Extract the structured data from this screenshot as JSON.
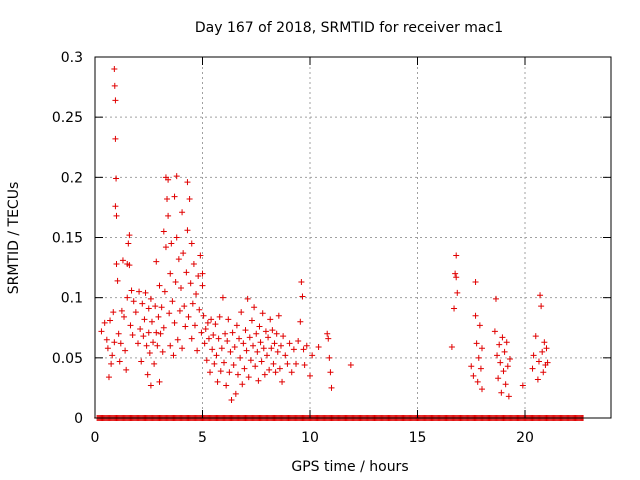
{
  "chart_data": {
    "type": "scatter",
    "title": "Day 167 of 2018, SRMTID for receiver mac1",
    "xlabel": "GPS time / hours",
    "ylabel": "SRMTID / TECUs",
    "xlim": [
      0,
      24.0
    ],
    "ylim": [
      0,
      0.3
    ],
    "grid": true,
    "legend": "none",
    "marker": "+",
    "series_color": "#e00000",
    "x_ticks": [
      {
        "value": 0,
        "label": "0"
      },
      {
        "value": 5,
        "label": "5"
      },
      {
        "value": 10,
        "label": "10"
      },
      {
        "value": 15,
        "label": "15"
      },
      {
        "value": 20,
        "label": "20"
      }
    ],
    "y_ticks": [
      {
        "value": 0,
        "label": "0"
      },
      {
        "value": 0.05,
        "label": "0.05"
      },
      {
        "value": 0.1,
        "label": "0.1"
      },
      {
        "value": 0.15,
        "label": "0.15"
      },
      {
        "value": 0.2,
        "label": "0.2"
      },
      {
        "value": 0.25,
        "label": "0.25"
      },
      {
        "value": 0.3,
        "label": "0.3"
      }
    ],
    "series": [
      {
        "name": "SRMTID",
        "points": [
          [
            0.3,
            0.072
          ],
          [
            0.45,
            0.079
          ],
          [
            0.55,
            0.065
          ],
          [
            0.6,
            0.058
          ],
          [
            0.65,
            0.034
          ],
          [
            0.7,
            0.081
          ],
          [
            0.75,
            0.045
          ],
          [
            0.8,
            0.052
          ],
          [
            0.85,
            0.088
          ],
          [
            0.9,
            0.063
          ],
          [
            0.9,
            0.29
          ],
          [
            0.92,
            0.276
          ],
          [
            0.95,
            0.264
          ],
          [
            0.95,
            0.232
          ],
          [
            0.98,
            0.199
          ],
          [
            0.95,
            0.176
          ],
          [
            1.0,
            0.168
          ],
          [
            1.0,
            0.128
          ],
          [
            1.05,
            0.114
          ],
          [
            1.1,
            0.07
          ],
          [
            1.15,
            0.047
          ],
          [
            1.2,
            0.062
          ],
          [
            1.25,
            0.089
          ],
          [
            1.3,
            0.131
          ],
          [
            1.35,
            0.084
          ],
          [
            1.4,
            0.056
          ],
          [
            1.45,
            0.04
          ],
          [
            1.5,
            0.1
          ],
          [
            1.5,
            0.128
          ],
          [
            1.55,
            0.145
          ],
          [
            1.6,
            0.152
          ],
          [
            1.6,
            0.127
          ],
          [
            1.65,
            0.077
          ],
          [
            1.7,
            0.106
          ],
          [
            1.75,
            0.069
          ],
          [
            1.8,
            0.097
          ],
          [
            1.9,
            0.088
          ],
          [
            2.0,
            0.062
          ],
          [
            2.05,
            0.105
          ],
          [
            2.1,
            0.074
          ],
          [
            2.15,
            0.047
          ],
          [
            2.2,
            0.095
          ],
          [
            2.25,
            0.068
          ],
          [
            2.3,
            0.082
          ],
          [
            2.35,
            0.104
          ],
          [
            2.4,
            0.06
          ],
          [
            2.45,
            0.036
          ],
          [
            2.5,
            0.091
          ],
          [
            2.5,
            0.071
          ],
          [
            2.55,
            0.054
          ],
          [
            2.6,
            0.099
          ],
          [
            2.6,
            0.027
          ],
          [
            2.65,
            0.08
          ],
          [
            2.7,
            0.063
          ],
          [
            2.75,
            0.045
          ],
          [
            2.8,
            0.093
          ],
          [
            2.85,
            0.071
          ],
          [
            2.85,
            0.13
          ],
          [
            2.9,
            0.06
          ],
          [
            2.95,
            0.084
          ],
          [
            3.0,
            0.11
          ],
          [
            3.0,
            0.03
          ],
          [
            3.05,
            0.07
          ],
          [
            3.1,
            0.092
          ],
          [
            3.15,
            0.055
          ],
          [
            3.2,
            0.075
          ],
          [
            3.2,
            0.155
          ],
          [
            3.25,
            0.105
          ],
          [
            3.3,
            0.142
          ],
          [
            3.3,
            0.2
          ],
          [
            3.35,
            0.182
          ],
          [
            3.4,
            0.198
          ],
          [
            3.4,
            0.168
          ],
          [
            3.45,
            0.087
          ],
          [
            3.5,
            0.12
          ],
          [
            3.5,
            0.06
          ],
          [
            3.55,
            0.145
          ],
          [
            3.6,
            0.097
          ],
          [
            3.65,
            0.052
          ],
          [
            3.7,
            0.184
          ],
          [
            3.7,
            0.079
          ],
          [
            3.75,
            0.113
          ],
          [
            3.8,
            0.201
          ],
          [
            3.8,
            0.15
          ],
          [
            3.85,
            0.065
          ],
          [
            3.9,
            0.132
          ],
          [
            3.95,
            0.089
          ],
          [
            4.0,
            0.108
          ],
          [
            4.05,
            0.171
          ],
          [
            4.05,
            0.058
          ],
          [
            4.1,
            0.137
          ],
          [
            4.15,
            0.093
          ],
          [
            4.2,
            0.076
          ],
          [
            4.25,
            0.121
          ],
          [
            4.3,
            0.196
          ],
          [
            4.3,
            0.156
          ],
          [
            4.35,
            0.084
          ],
          [
            4.4,
            0.182
          ],
          [
            4.45,
            0.112
          ],
          [
            4.5,
            0.066
          ],
          [
            4.5,
            0.145
          ],
          [
            4.55,
            0.095
          ],
          [
            4.6,
            0.128
          ],
          [
            4.65,
            0.077
          ],
          [
            4.7,
            0.103
          ],
          [
            4.75,
            0.056
          ],
          [
            4.8,
            0.118
          ],
          [
            4.85,
            0.09
          ],
          [
            4.9,
            0.135
          ],
          [
            4.95,
            0.071
          ],
          [
            5.0,
            0.12
          ],
          [
            5.0,
            0.11
          ],
          [
            5.05,
            0.085
          ],
          [
            5.1,
            0.062
          ],
          [
            5.15,
            0.074
          ],
          [
            5.2,
            0.048
          ],
          [
            5.25,
            0.079
          ],
          [
            5.3,
            0.066
          ],
          [
            5.35,
            0.038
          ],
          [
            5.4,
            0.082
          ],
          [
            5.45,
            0.057
          ],
          [
            5.5,
            0.069
          ],
          [
            5.55,
            0.045
          ],
          [
            5.6,
            0.078
          ],
          [
            5.65,
            0.052
          ],
          [
            5.7,
            0.03
          ],
          [
            5.75,
            0.066
          ],
          [
            5.8,
            0.084
          ],
          [
            5.85,
            0.039
          ],
          [
            5.9,
            0.058
          ],
          [
            5.95,
            0.1
          ],
          [
            6.0,
            0.046
          ],
          [
            6.05,
            0.07
          ],
          [
            6.1,
            0.027
          ],
          [
            6.15,
            0.064
          ],
          [
            6.2,
            0.082
          ],
          [
            6.25,
            0.038
          ],
          [
            6.3,
            0.055
          ],
          [
            6.35,
            0.015
          ],
          [
            6.4,
            0.071
          ],
          [
            6.45,
            0.044
          ],
          [
            6.5,
            0.059
          ],
          [
            6.55,
            0.02
          ],
          [
            6.6,
            0.077
          ],
          [
            6.65,
            0.036
          ],
          [
            6.7,
            0.066
          ],
          [
            6.75,
            0.05
          ],
          [
            6.8,
            0.088
          ],
          [
            6.85,
            0.028
          ],
          [
            6.9,
            0.062
          ],
          [
            6.95,
            0.041
          ],
          [
            7.0,
            0.073
          ],
          [
            7.05,
            0.056
          ],
          [
            7.1,
            0.099
          ],
          [
            7.15,
            0.034
          ],
          [
            7.2,
            0.067
          ],
          [
            7.25,
            0.048
          ],
          [
            7.3,
            0.081
          ],
          [
            7.35,
            0.06
          ],
          [
            7.4,
            0.092
          ],
          [
            7.45,
            0.043
          ],
          [
            7.5,
            0.07
          ],
          [
            7.55,
            0.055
          ],
          [
            7.6,
            0.031
          ],
          [
            7.65,
            0.076
          ],
          [
            7.7,
            0.063
          ],
          [
            7.75,
            0.047
          ],
          [
            7.8,
            0.087
          ],
          [
            7.85,
            0.058
          ],
          [
            7.9,
            0.036
          ],
          [
            7.95,
            0.072
          ],
          [
            8.0,
            0.052
          ],
          [
            8.05,
            0.067
          ],
          [
            8.1,
            0.04
          ],
          [
            8.15,
            0.082
          ],
          [
            8.2,
            0.058
          ],
          [
            8.25,
            0.073
          ],
          [
            8.3,
            0.045
          ],
          [
            8.35,
            0.062
          ],
          [
            8.4,
            0.038
          ],
          [
            8.45,
            0.07
          ],
          [
            8.5,
            0.055
          ],
          [
            8.55,
            0.085
          ],
          [
            8.6,
            0.041
          ],
          [
            8.65,
            0.06
          ],
          [
            8.7,
            0.03
          ],
          [
            8.75,
            0.068
          ],
          [
            8.85,
            0.052
          ],
          [
            8.95,
            0.045
          ],
          [
            9.05,
            0.062
          ],
          [
            9.15,
            0.038
          ],
          [
            9.25,
            0.057
          ],
          [
            9.35,
            0.045
          ],
          [
            9.45,
            0.064
          ],
          [
            9.55,
            0.08
          ],
          [
            9.6,
            0.113
          ],
          [
            9.65,
            0.101
          ],
          [
            9.7,
            0.057
          ],
          [
            9.75,
            0.044
          ],
          [
            9.85,
            0.06
          ],
          [
            10.0,
            0.035
          ],
          [
            10.1,
            0.052
          ],
          [
            10.4,
            0.059
          ],
          [
            10.8,
            0.07
          ],
          [
            10.85,
            0.066
          ],
          [
            10.9,
            0.05
          ],
          [
            10.95,
            0.038
          ],
          [
            11.0,
            0.025
          ],
          [
            11.9,
            0.044
          ],
          [
            16.6,
            0.059
          ],
          [
            16.7,
            0.091
          ],
          [
            16.75,
            0.12
          ],
          [
            16.8,
            0.135
          ],
          [
            16.8,
            0.117
          ],
          [
            16.85,
            0.104
          ],
          [
            17.5,
            0.043
          ],
          [
            17.6,
            0.035
          ],
          [
            17.7,
            0.113
          ],
          [
            17.7,
            0.085
          ],
          [
            17.75,
            0.062
          ],
          [
            17.8,
            0.03
          ],
          [
            17.85,
            0.05
          ],
          [
            17.9,
            0.077
          ],
          [
            17.95,
            0.041
          ],
          [
            18.0,
            0.024
          ],
          [
            18.0,
            0.058
          ],
          [
            18.6,
            0.072
          ],
          [
            18.65,
            0.099
          ],
          [
            18.7,
            0.052
          ],
          [
            18.75,
            0.033
          ],
          [
            18.8,
            0.061
          ],
          [
            18.85,
            0.046
          ],
          [
            18.9,
            0.021
          ],
          [
            18.95,
            0.067
          ],
          [
            19.0,
            0.039
          ],
          [
            19.05,
            0.055
          ],
          [
            19.1,
            0.028
          ],
          [
            19.15,
            0.063
          ],
          [
            19.2,
            0.043
          ],
          [
            19.25,
            0.018
          ],
          [
            19.3,
            0.049
          ],
          [
            19.9,
            0.027
          ],
          [
            20.35,
            0.041
          ],
          [
            20.4,
            0.052
          ],
          [
            20.5,
            0.068
          ],
          [
            20.6,
            0.032
          ],
          [
            20.65,
            0.047
          ],
          [
            20.7,
            0.102
          ],
          [
            20.75,
            0.093
          ],
          [
            20.8,
            0.055
          ],
          [
            20.85,
            0.038
          ],
          [
            20.9,
            0.063
          ],
          [
            20.95,
            0.044
          ],
          [
            21.0,
            0.058
          ],
          [
            21.05,
            0.046
          ]
        ],
        "zero_band_x": [
          0.1,
          22.7
        ]
      }
    ]
  }
}
